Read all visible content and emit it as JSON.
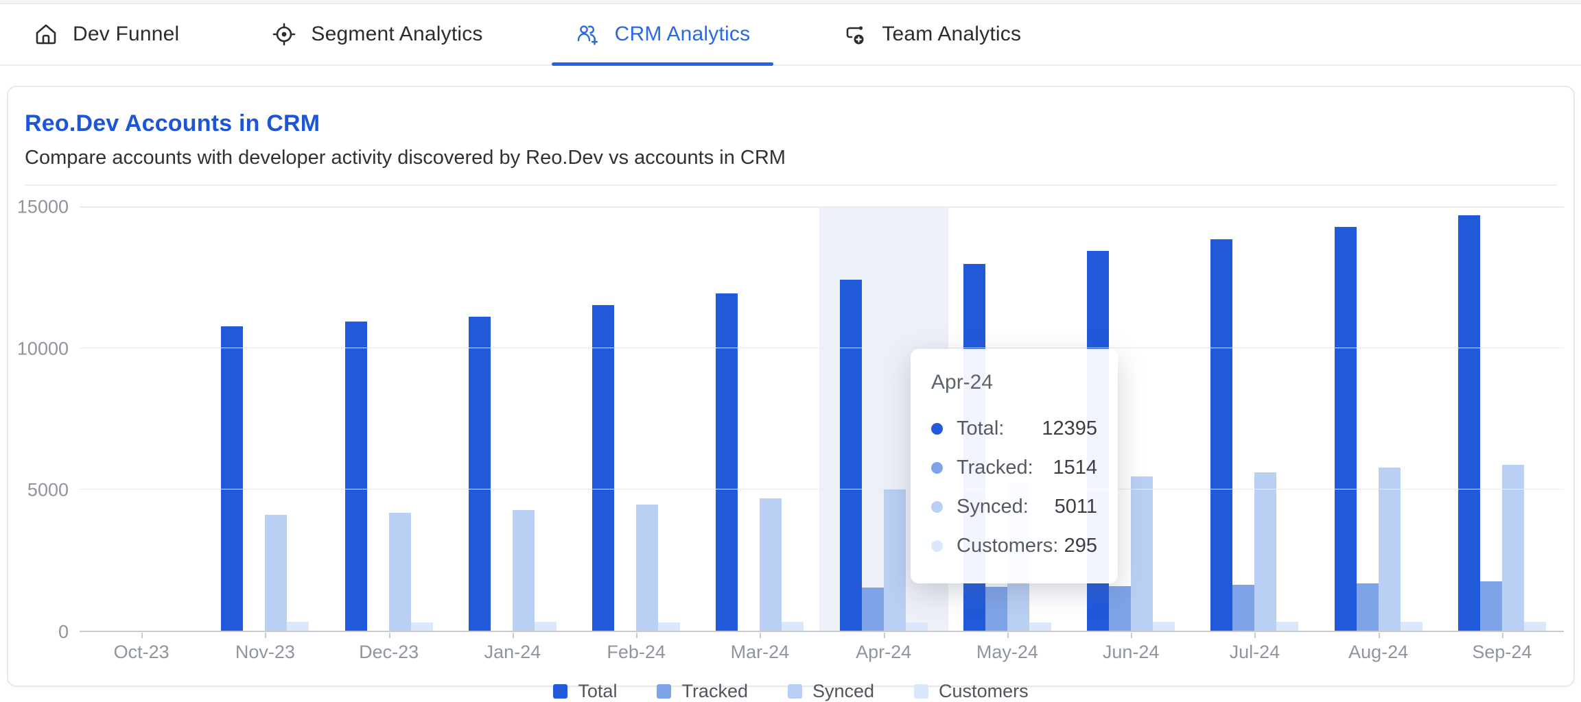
{
  "tabs": {
    "items": [
      {
        "label": "Dev Funnel",
        "icon": "home-icon",
        "active": false
      },
      {
        "label": "Segment Analytics",
        "icon": "crosshair-icon",
        "active": false
      },
      {
        "label": "CRM Analytics",
        "icon": "users-plus-icon",
        "active": true
      },
      {
        "label": "Team Analytics",
        "icon": "flow-plus-icon",
        "active": false
      }
    ],
    "active_color": "#2a68e4"
  },
  "card": {
    "title": "Reo.Dev Accounts in CRM",
    "subtitle": "Compare accounts with developer activity discovered by Reo.Dev vs accounts in CRM",
    "title_color": "#1c55d6"
  },
  "chart_data": {
    "type": "bar",
    "title": "Reo.Dev Accounts in CRM",
    "categories": [
      "Oct-23",
      "Nov-23",
      "Dec-23",
      "Jan-24",
      "Feb-24",
      "Mar-24",
      "Apr-24",
      "May-24",
      "Jun-24",
      "Jul-24",
      "Aug-24",
      "Sep-24"
    ],
    "series": [
      {
        "name": "Total",
        "color": "#2059da",
        "values": [
          0,
          10740,
          10900,
          11090,
          11480,
          11900,
          12395,
          12950,
          13400,
          13820,
          14240,
          14670
        ]
      },
      {
        "name": "Tracked",
        "color": "#7ea3e8",
        "values": [
          0,
          0,
          0,
          0,
          0,
          0,
          1514,
          1550,
          1580,
          1620,
          1680,
          1730
        ]
      },
      {
        "name": "Synced",
        "color": "#b9cff3",
        "values": [
          0,
          4090,
          4170,
          4260,
          4460,
          4680,
          5011,
          5200,
          5450,
          5600,
          5750,
          5860
        ]
      },
      {
        "name": "Customers",
        "color": "#dbe7fb",
        "values": [
          0,
          310,
          300,
          320,
          300,
          305,
          295,
          300,
          310,
          310,
          315,
          320
        ]
      }
    ],
    "xlabel": "",
    "ylabel": "",
    "ylim": [
      0,
      15000
    ],
    "yticks": [
      0,
      5000,
      10000,
      15000
    ],
    "grid": true,
    "legend_position": "bottom",
    "highlighted_category": "Apr-24"
  },
  "tooltip": {
    "title": "Apr-24",
    "rows": [
      {
        "label": "Total:",
        "value": "12395"
      },
      {
        "label": "Tracked:",
        "value": "1514"
      },
      {
        "label": "Synced:",
        "value": "5011"
      },
      {
        "label": "Customers:",
        "value": "295"
      }
    ]
  }
}
